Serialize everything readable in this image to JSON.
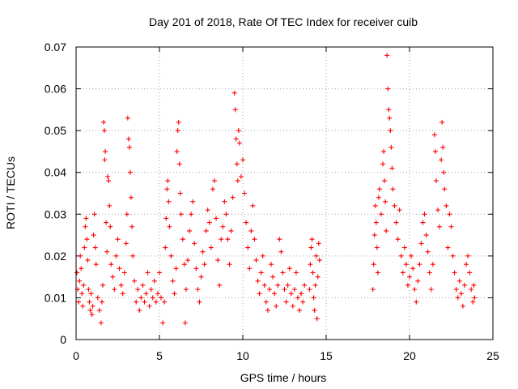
{
  "chart_data": {
    "type": "scatter",
    "title": "Day 201 of 2018, Rate Of TEC Index for receiver cuib",
    "xlabel": "GPS time / hours",
    "ylabel": "ROTI / TECUs",
    "xlim": [
      0,
      25
    ],
    "ylim": [
      0,
      0.07
    ],
    "x_ticks": [
      "0",
      "5",
      "10",
      "15",
      "20",
      "25"
    ],
    "y_ticks": [
      "0",
      "0.01",
      "0.02",
      "0.03",
      "0.04",
      "0.05",
      "0.06",
      "0.07"
    ],
    "grid": true,
    "marker": "plus",
    "color": "#ff0000",
    "series": [
      {
        "points": [
          [
            0.05,
            0.016
          ],
          [
            0.1,
            0.012
          ],
          [
            0.15,
            0.009
          ],
          [
            0.2,
            0.014
          ],
          [
            0.25,
            0.02
          ],
          [
            0.3,
            0.017
          ],
          [
            0.35,
            0.011
          ],
          [
            0.4,
            0.008
          ],
          [
            0.45,
            0.013
          ],
          [
            0.5,
            0.022
          ],
          [
            0.55,
            0.027
          ],
          [
            0.6,
            0.029
          ],
          [
            0.65,
            0.024
          ],
          [
            0.7,
            0.019
          ],
          [
            0.75,
            0.012
          ],
          [
            0.8,
            0.009
          ],
          [
            0.85,
            0.007
          ],
          [
            0.9,
            0.011
          ],
          [
            0.95,
            0.006
          ],
          [
            1.0,
            0.008
          ],
          [
            1.05,
            0.025
          ],
          [
            1.1,
            0.03
          ],
          [
            1.15,
            0.022
          ],
          [
            1.2,
            0.018
          ],
          [
            1.3,
            0.01
          ],
          [
            1.4,
            0.007
          ],
          [
            1.5,
            0.004
          ],
          [
            1.55,
            0.009
          ],
          [
            1.6,
            0.013
          ],
          [
            1.65,
            0.052
          ],
          [
            1.7,
            0.05
          ],
          [
            1.72,
            0.043
          ],
          [
            1.75,
            0.045
          ],
          [
            1.8,
            0.028
          ],
          [
            1.85,
            0.021
          ],
          [
            1.9,
            0.039
          ],
          [
            1.95,
            0.038
          ],
          [
            2.0,
            0.032
          ],
          [
            2.05,
            0.027
          ],
          [
            2.1,
            0.018
          ],
          [
            2.2,
            0.015
          ],
          [
            2.3,
            0.012
          ],
          [
            2.4,
            0.02
          ],
          [
            2.5,
            0.024
          ],
          [
            2.6,
            0.017
          ],
          [
            2.7,
            0.013
          ],
          [
            2.8,
            0.011
          ],
          [
            2.9,
            0.016
          ],
          [
            3.0,
            0.023
          ],
          [
            3.05,
            0.03
          ],
          [
            3.1,
            0.053
          ],
          [
            3.15,
            0.048
          ],
          [
            3.2,
            0.046
          ],
          [
            3.25,
            0.04
          ],
          [
            3.3,
            0.034
          ],
          [
            3.35,
            0.027
          ],
          [
            3.4,
            0.02
          ],
          [
            3.5,
            0.014
          ],
          [
            3.6,
            0.009
          ],
          [
            3.7,
            0.012
          ],
          [
            3.8,
            0.007
          ],
          [
            3.9,
            0.01
          ],
          [
            4.0,
            0.013
          ],
          [
            4.1,
            0.009
          ],
          [
            4.2,
            0.011
          ],
          [
            4.3,
            0.016
          ],
          [
            4.4,
            0.008
          ],
          [
            4.5,
            0.012
          ],
          [
            4.6,
            0.01
          ],
          [
            4.7,
            0.014
          ],
          [
            4.8,
            0.009
          ],
          [
            4.9,
            0.011
          ],
          [
            5.0,
            0.016
          ],
          [
            5.1,
            0.01
          ],
          [
            5.2,
            0.004
          ],
          [
            5.3,
            0.009
          ],
          [
            5.35,
            0.022
          ],
          [
            5.4,
            0.029
          ],
          [
            5.45,
            0.036
          ],
          [
            5.5,
            0.038
          ],
          [
            5.55,
            0.033
          ],
          [
            5.6,
            0.027
          ],
          [
            5.7,
            0.02
          ],
          [
            5.8,
            0.014
          ],
          [
            5.9,
            0.011
          ],
          [
            6.0,
            0.017
          ],
          [
            6.05,
            0.045
          ],
          [
            6.1,
            0.05
          ],
          [
            6.15,
            0.052
          ],
          [
            6.2,
            0.042
          ],
          [
            6.25,
            0.035
          ],
          [
            6.3,
            0.03
          ],
          [
            6.4,
            0.024
          ],
          [
            6.5,
            0.018
          ],
          [
            6.55,
            0.004
          ],
          [
            6.6,
            0.012
          ],
          [
            6.7,
            0.019
          ],
          [
            6.8,
            0.026
          ],
          [
            6.9,
            0.03
          ],
          [
            7.0,
            0.033
          ],
          [
            7.1,
            0.023
          ],
          [
            7.2,
            0.017
          ],
          [
            7.3,
            0.012
          ],
          [
            7.4,
            0.009
          ],
          [
            7.5,
            0.015
          ],
          [
            7.6,
            0.021
          ],
          [
            7.7,
            0.018
          ],
          [
            7.8,
            0.026
          ],
          [
            7.9,
            0.031
          ],
          [
            8.0,
            0.028
          ],
          [
            8.1,
            0.022
          ],
          [
            8.2,
            0.036
          ],
          [
            8.3,
            0.038
          ],
          [
            8.4,
            0.029
          ],
          [
            8.5,
            0.019
          ],
          [
            8.6,
            0.013
          ],
          [
            8.7,
            0.024
          ],
          [
            8.8,
            0.027
          ],
          [
            8.9,
            0.033
          ],
          [
            9.0,
            0.03
          ],
          [
            9.1,
            0.024
          ],
          [
            9.2,
            0.018
          ],
          [
            9.3,
            0.026
          ],
          [
            9.4,
            0.034
          ],
          [
            9.5,
            0.059
          ],
          [
            9.55,
            0.055
          ],
          [
            9.6,
            0.048
          ],
          [
            9.65,
            0.042
          ],
          [
            9.7,
            0.038
          ],
          [
            9.75,
            0.05
          ],
          [
            9.8,
            0.047
          ],
          [
            9.9,
            0.039
          ],
          [
            10.0,
            0.043
          ],
          [
            10.1,
            0.035
          ],
          [
            10.2,
            0.028
          ],
          [
            10.3,
            0.022
          ],
          [
            10.4,
            0.017
          ],
          [
            10.5,
            0.026
          ],
          [
            10.6,
            0.032
          ],
          [
            10.7,
            0.024
          ],
          [
            10.8,
            0.019
          ],
          [
            10.9,
            0.014
          ],
          [
            11.0,
            0.011
          ],
          [
            11.1,
            0.016
          ],
          [
            11.2,
            0.02
          ],
          [
            11.3,
            0.013
          ],
          [
            11.4,
            0.009
          ],
          [
            11.5,
            0.007
          ],
          [
            11.6,
            0.012
          ],
          [
            11.7,
            0.018
          ],
          [
            11.8,
            0.015
          ],
          [
            11.9,
            0.011
          ],
          [
            12.0,
            0.008
          ],
          [
            12.1,
            0.013
          ],
          [
            12.2,
            0.024
          ],
          [
            12.3,
            0.021
          ],
          [
            12.4,
            0.016
          ],
          [
            12.5,
            0.012
          ],
          [
            12.6,
            0.009
          ],
          [
            12.7,
            0.013
          ],
          [
            12.8,
            0.017
          ],
          [
            12.9,
            0.011
          ],
          [
            13.0,
            0.008
          ],
          [
            13.1,
            0.012
          ],
          [
            13.2,
            0.016
          ],
          [
            13.3,
            0.01
          ],
          [
            13.4,
            0.007
          ],
          [
            13.5,
            0.011
          ],
          [
            13.6,
            0.009
          ],
          [
            13.7,
            0.013
          ],
          [
            14.0,
            0.012
          ],
          [
            14.05,
            0.018
          ],
          [
            14.1,
            0.022
          ],
          [
            14.15,
            0.024
          ],
          [
            14.2,
            0.016
          ],
          [
            14.25,
            0.01
          ],
          [
            14.3,
            0.007
          ],
          [
            14.35,
            0.013
          ],
          [
            14.4,
            0.02
          ],
          [
            14.45,
            0.005
          ],
          [
            14.5,
            0.015
          ],
          [
            14.55,
            0.023
          ],
          [
            14.6,
            0.019
          ],
          [
            17.8,
            0.012
          ],
          [
            17.85,
            0.018
          ],
          [
            17.9,
            0.025
          ],
          [
            17.95,
            0.032
          ],
          [
            18.0,
            0.028
          ],
          [
            18.05,
            0.022
          ],
          [
            18.1,
            0.016
          ],
          [
            18.15,
            0.034
          ],
          [
            18.2,
            0.036
          ],
          [
            18.3,
            0.03
          ],
          [
            18.4,
            0.042
          ],
          [
            18.45,
            0.045
          ],
          [
            18.5,
            0.038
          ],
          [
            18.55,
            0.033
          ],
          [
            18.6,
            0.026
          ],
          [
            18.65,
            0.068
          ],
          [
            18.7,
            0.06
          ],
          [
            18.75,
            0.055
          ],
          [
            18.8,
            0.053
          ],
          [
            18.85,
            0.05
          ],
          [
            18.9,
            0.046
          ],
          [
            18.95,
            0.041
          ],
          [
            19.0,
            0.036
          ],
          [
            19.1,
            0.032
          ],
          [
            19.2,
            0.028
          ],
          [
            19.3,
            0.024
          ],
          [
            19.4,
            0.031
          ],
          [
            19.5,
            0.02
          ],
          [
            19.6,
            0.016
          ],
          [
            19.7,
            0.022
          ],
          [
            19.8,
            0.018
          ],
          [
            19.9,
            0.013
          ],
          [
            20.0,
            0.015
          ],
          [
            20.1,
            0.02
          ],
          [
            20.2,
            0.017
          ],
          [
            20.3,
            0.012
          ],
          [
            20.4,
            0.009
          ],
          [
            20.5,
            0.014
          ],
          [
            20.6,
            0.018
          ],
          [
            20.7,
            0.023
          ],
          [
            20.8,
            0.028
          ],
          [
            20.9,
            0.03
          ],
          [
            21.0,
            0.025
          ],
          [
            21.1,
            0.021
          ],
          [
            21.2,
            0.016
          ],
          [
            21.3,
            0.012
          ],
          [
            21.4,
            0.018
          ],
          [
            21.5,
            0.049
          ],
          [
            21.55,
            0.045
          ],
          [
            21.6,
            0.038
          ],
          [
            21.7,
            0.031
          ],
          [
            21.8,
            0.027
          ],
          [
            21.9,
            0.043
          ],
          [
            21.95,
            0.052
          ],
          [
            22.0,
            0.046
          ],
          [
            22.05,
            0.04
          ],
          [
            22.1,
            0.036
          ],
          [
            22.2,
            0.032
          ],
          [
            22.3,
            0.022
          ],
          [
            22.4,
            0.03
          ],
          [
            22.5,
            0.027
          ],
          [
            22.6,
            0.02
          ],
          [
            22.7,
            0.016
          ],
          [
            22.8,
            0.012
          ],
          [
            22.9,
            0.01
          ],
          [
            23.0,
            0.014
          ],
          [
            23.1,
            0.011
          ],
          [
            23.2,
            0.008
          ],
          [
            23.3,
            0.013
          ],
          [
            23.4,
            0.018
          ],
          [
            23.5,
            0.02
          ],
          [
            23.6,
            0.016
          ],
          [
            23.7,
            0.012
          ],
          [
            23.8,
            0.009
          ],
          [
            23.85,
            0.013
          ],
          [
            23.9,
            0.01
          ]
        ]
      }
    ]
  }
}
